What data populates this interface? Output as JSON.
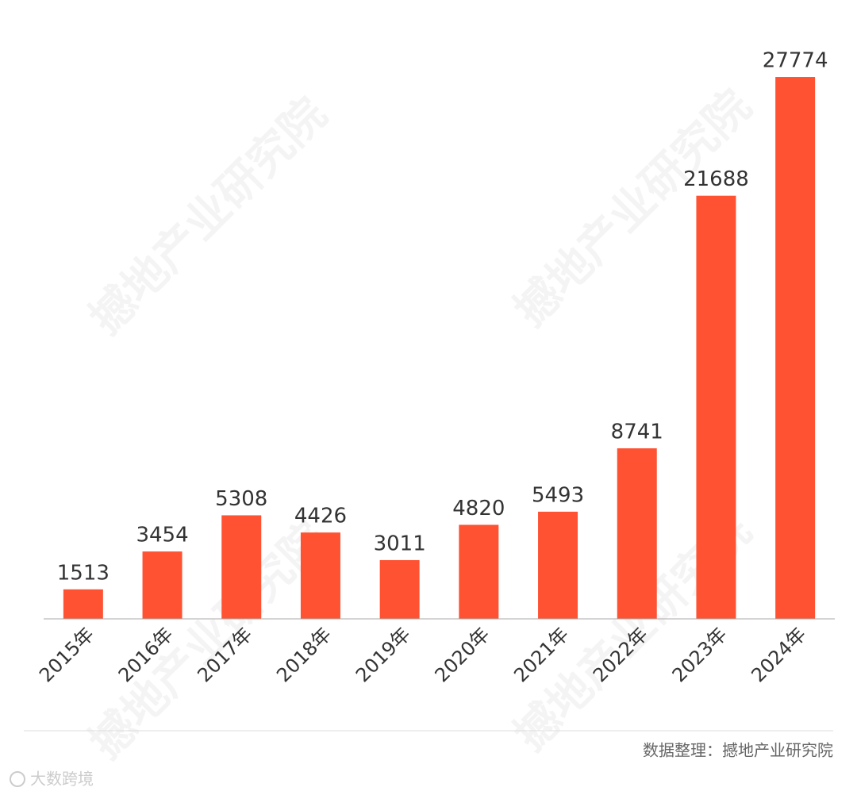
{
  "chart_data": {
    "type": "bar",
    "categories": [
      "2015年",
      "2016年",
      "2017年",
      "2018年",
      "2019年",
      "2020年",
      "2021年",
      "2022年",
      "2023年",
      "2024年"
    ],
    "values": [
      1513,
      3454,
      5308,
      4426,
      3011,
      4820,
      5493,
      8741,
      21688,
      27774
    ],
    "color": "#ff5233",
    "ylim": [
      0,
      30000
    ],
    "source": "数据整理：撼地产业研究院",
    "watermark": "撼地产业研究院",
    "logo_text": "大数跨境"
  }
}
